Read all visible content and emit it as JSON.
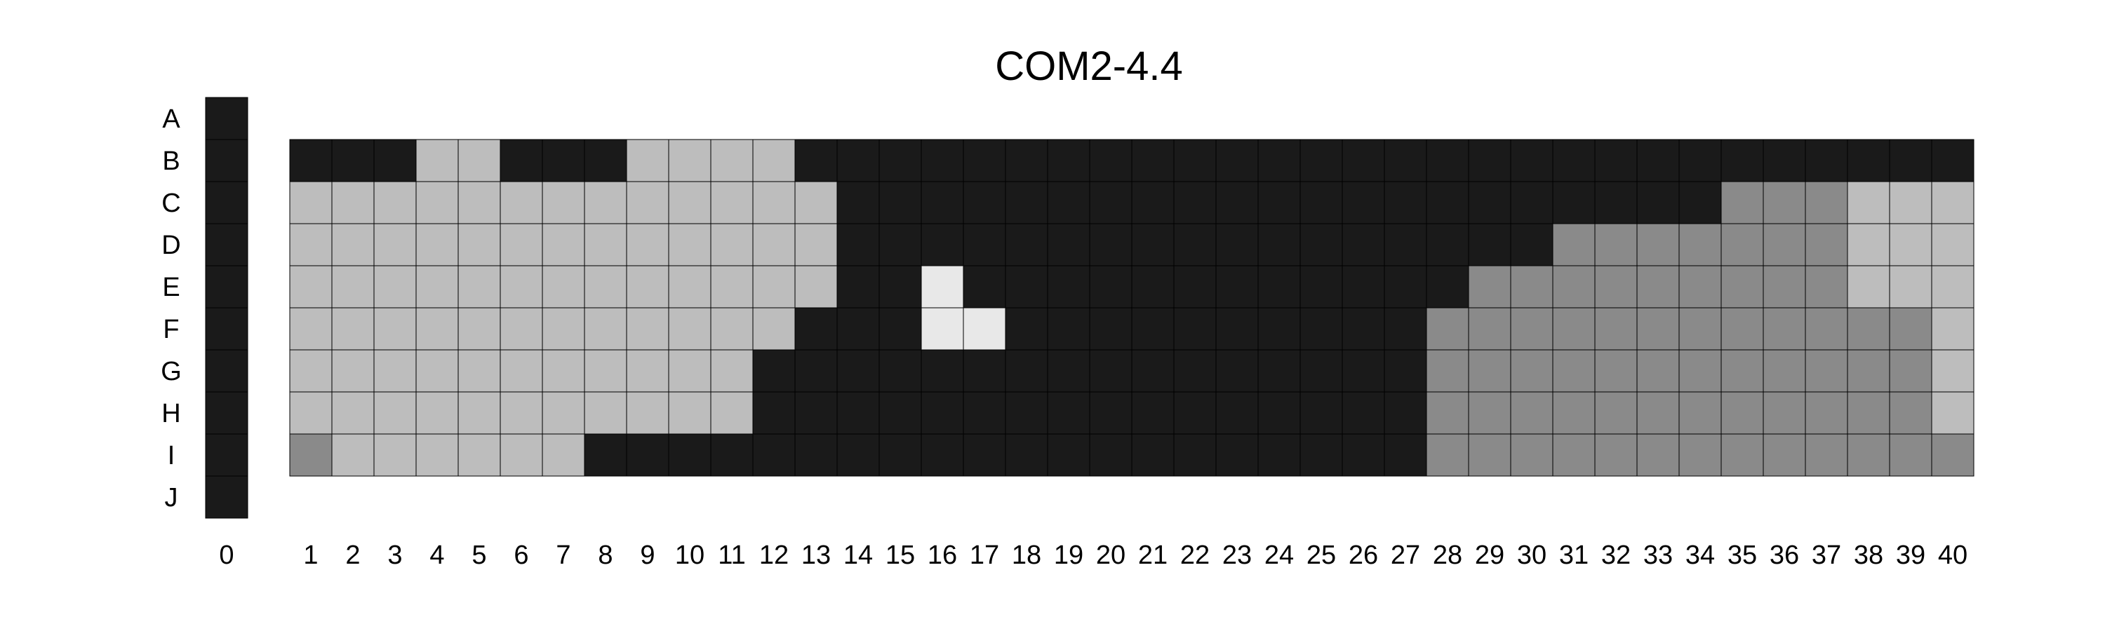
{
  "chart_data": {
    "type": "heatmap",
    "title": "COM2-4.4",
    "xlabel": "",
    "ylabel": "",
    "rows": [
      "A",
      "B",
      "C",
      "D",
      "E",
      "F",
      "G",
      "H",
      "I",
      "J"
    ],
    "columns": [
      "0",
      "1",
      "2",
      "3",
      "4",
      "5",
      "6",
      "7",
      "8",
      "9",
      "10",
      "11",
      "12",
      "13",
      "14",
      "15",
      "16",
      "17",
      "18",
      "19",
      "20",
      "21",
      "22",
      "23",
      "24",
      "25",
      "26",
      "27",
      "28",
      "29",
      "30",
      "31",
      "32",
      "33",
      "34",
      "35",
      "36",
      "37",
      "38",
      "39",
      "40"
    ],
    "legend": null,
    "grid": true,
    "value_scale": {
      "0": "#e8e8e8",
      "1": "#bdbdbd",
      "2": "#8a8a8a",
      "3": "#1a1a1a"
    },
    "cells": [
      [
        3,
        null,
        null,
        null,
        null,
        null,
        null,
        null,
        null,
        null,
        null,
        null,
        null,
        null,
        null,
        null,
        null,
        null,
        null,
        null,
        null,
        null,
        null,
        null,
        null,
        null,
        null,
        null,
        null,
        null,
        null,
        null,
        null,
        null,
        null,
        null,
        null,
        null,
        null,
        null,
        null
      ],
      [
        3,
        3,
        3,
        3,
        1,
        1,
        3,
        3,
        3,
        1,
        1,
        1,
        1,
        3,
        3,
        3,
        3,
        3,
        3,
        3,
        3,
        3,
        3,
        3,
        3,
        3,
        3,
        3,
        3,
        3,
        3,
        3,
        3,
        3,
        3,
        3,
        3,
        3,
        3,
        3,
        3
      ],
      [
        3,
        1,
        1,
        1,
        1,
        1,
        1,
        1,
        1,
        1,
        1,
        1,
        1,
        1,
        3,
        3,
        3,
        3,
        3,
        3,
        3,
        3,
        3,
        3,
        3,
        3,
        3,
        3,
        3,
        3,
        3,
        3,
        3,
        3,
        3,
        2,
        2,
        2,
        1,
        1,
        1
      ],
      [
        3,
        1,
        1,
        1,
        1,
        1,
        1,
        1,
        1,
        1,
        1,
        1,
        1,
        1,
        3,
        3,
        3,
        3,
        3,
        3,
        3,
        3,
        3,
        3,
        3,
        3,
        3,
        3,
        3,
        3,
        3,
        2,
        2,
        2,
        2,
        2,
        2,
        2,
        1,
        1,
        1
      ],
      [
        3,
        1,
        1,
        1,
        1,
        1,
        1,
        1,
        1,
        1,
        1,
        1,
        1,
        1,
        3,
        3,
        0,
        3,
        3,
        3,
        3,
        3,
        3,
        3,
        3,
        3,
        3,
        3,
        3,
        2,
        2,
        2,
        2,
        2,
        2,
        2,
        2,
        2,
        1,
        1,
        1
      ],
      [
        3,
        1,
        1,
        1,
        1,
        1,
        1,
        1,
        1,
        1,
        1,
        1,
        1,
        3,
        3,
        3,
        0,
        0,
        3,
        3,
        3,
        3,
        3,
        3,
        3,
        3,
        3,
        3,
        2,
        2,
        2,
        2,
        2,
        2,
        2,
        2,
        2,
        2,
        2,
        2,
        1
      ],
      [
        3,
        1,
        1,
        1,
        1,
        1,
        1,
        1,
        1,
        1,
        1,
        1,
        3,
        3,
        3,
        3,
        3,
        3,
        3,
        3,
        3,
        3,
        3,
        3,
        3,
        3,
        3,
        3,
        2,
        2,
        2,
        2,
        2,
        2,
        2,
        2,
        2,
        2,
        2,
        2,
        1
      ],
      [
        3,
        1,
        1,
        1,
        1,
        1,
        1,
        1,
        1,
        1,
        1,
        1,
        3,
        3,
        3,
        3,
        3,
        3,
        3,
        3,
        3,
        3,
        3,
        3,
        3,
        3,
        3,
        3,
        2,
        2,
        2,
        2,
        2,
        2,
        2,
        2,
        2,
        2,
        2,
        2,
        1
      ],
      [
        3,
        2,
        1,
        1,
        1,
        1,
        1,
        1,
        3,
        3,
        3,
        3,
        3,
        3,
        3,
        3,
        3,
        3,
        3,
        3,
        3,
        3,
        3,
        3,
        3,
        3,
        3,
        3,
        2,
        2,
        2,
        2,
        2,
        2,
        2,
        2,
        2,
        2,
        2,
        2,
        2
      ],
      [
        3,
        null,
        null,
        null,
        null,
        null,
        null,
        null,
        null,
        null,
        null,
        null,
        null,
        null,
        null,
        null,
        null,
        null,
        null,
        null,
        null,
        null,
        null,
        null,
        null,
        null,
        null,
        null,
        null,
        null,
        null,
        null,
        null,
        null,
        null,
        null,
        null,
        null,
        null,
        null,
        null
      ]
    ]
  }
}
